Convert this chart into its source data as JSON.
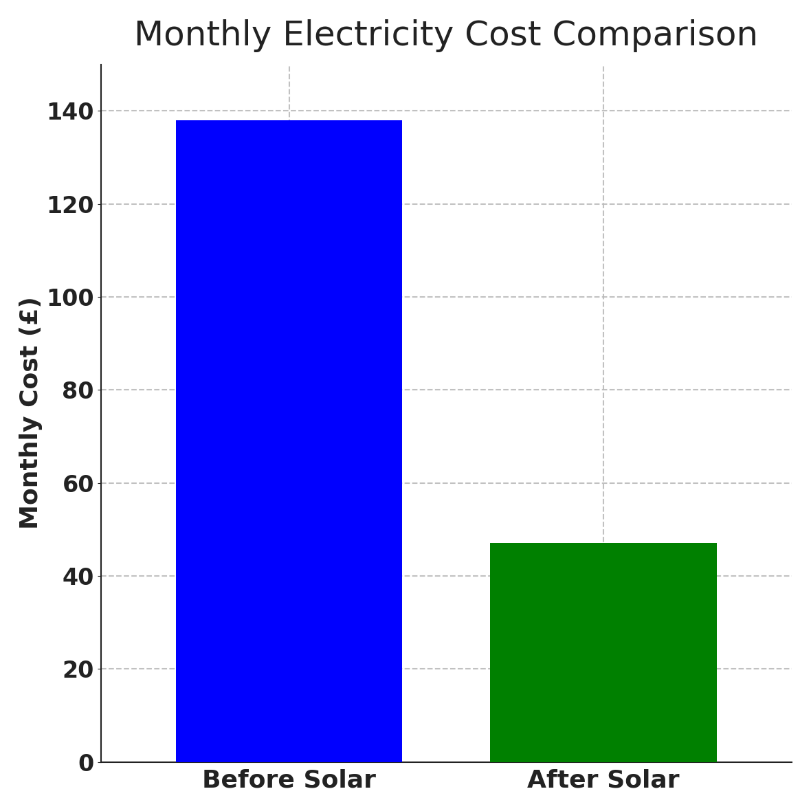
{
  "categories": [
    "Before Solar",
    "After Solar"
  ],
  "values": [
    138,
    47
  ],
  "bar_colors": [
    "#0000ff",
    "#008000"
  ],
  "title": "Monthly Electricity Cost Comparison",
  "ylabel": "Monthly Cost (£)",
  "ylim": [
    0,
    150
  ],
  "yticks": [
    0,
    20,
    40,
    60,
    80,
    100,
    120,
    140
  ],
  "title_fontsize": 36,
  "axis_label_fontsize": 26,
  "tick_fontsize": 24,
  "xtick_fontsize": 26,
  "grid_color": "#bbbbbb",
  "grid_alpha": 0.9,
  "background_color": "#ffffff",
  "bar_width": 0.72,
  "bar_positions": [
    0,
    1
  ]
}
